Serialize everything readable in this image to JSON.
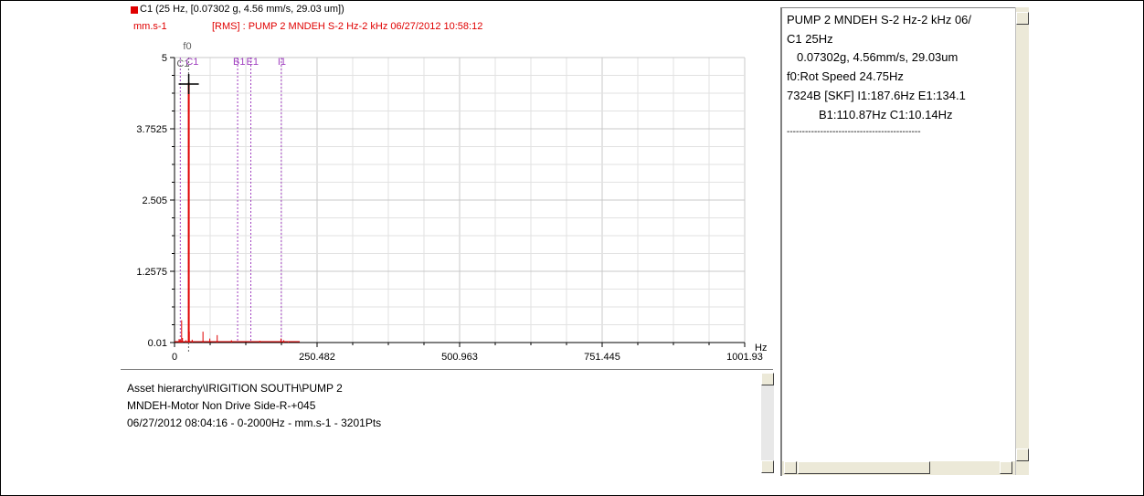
{
  "legend": {
    "series_label": "C1 (25 Hz, [0.07302 g, 4.56 mm/s, 29.03 um])",
    "unit": "mm.s-1",
    "rms_title": "[RMS] : PUMP 2 MNDEH S-2 Hz-2 kHz 06/27/2012 10:58:12",
    "series_color": "#e00000",
    "title_color": "#e00000"
  },
  "markers": {
    "f0": "f0",
    "c1": "C1",
    "b1": "B1",
    "e1": "E1",
    "i1": "I1",
    "color": "#a040c0"
  },
  "chart_data": {
    "type": "line",
    "xlabel": "Hz",
    "x_ticks": [
      "0",
      "250.482",
      "500.963",
      "751.445",
      "1001.93"
    ],
    "y_ticks": [
      "5",
      "3.7525",
      "2.505",
      "1.2575",
      "0.01"
    ],
    "xlim": [
      0,
      1001.93
    ],
    "ylim": [
      0.01,
      5
    ],
    "grid": true,
    "series": [
      {
        "color": "#e00000",
        "points": [
          {
            "x": 8,
            "y": 0.07
          },
          {
            "x": 10,
            "y": 0.06
          },
          {
            "x": 12.5,
            "y": 0.4
          },
          {
            "x": 14,
            "y": 0.09
          },
          {
            "x": 20,
            "y": 0.05
          },
          {
            "x": 25,
            "y": 4.56
          },
          {
            "x": 26,
            "y": 0.2
          },
          {
            "x": 31,
            "y": 0.06
          },
          {
            "x": 50,
            "y": 0.2
          },
          {
            "x": 62,
            "y": 0.08
          },
          {
            "x": 75,
            "y": 0.14
          },
          {
            "x": 100,
            "y": 0.05
          },
          {
            "x": 150,
            "y": 0.04
          },
          {
            "x": 187,
            "y": 0.08
          },
          {
            "x": 192,
            "y": 0.05
          },
          {
            "x": 200,
            "y": 0.03
          }
        ]
      }
    ],
    "marker_lines": [
      {
        "label": "C1",
        "x": 10.14
      },
      {
        "label": "f0",
        "x": 24.75
      },
      {
        "label": "B1",
        "x": 110.87
      },
      {
        "label": "E1",
        "x": 134.1
      },
      {
        "label": "I1",
        "x": 187.6
      }
    ],
    "cursor": {
      "x": 25,
      "y": 4.56
    }
  },
  "info": {
    "line1": "Asset hierarchy\\IRIGITION SOUTH\\PUMP 2",
    "line2": "MNDEH-Motor Non Drive Side-R-+045",
    "line3": "06/27/2012 08:04:16 - 0-2000Hz - mm.s-1 - 3201Pts"
  },
  "right_panel": {
    "line1": "PUMP 2 MNDEH S-2 Hz-2 kHz 06/",
    "line2": "C1   25Hz",
    "line3": "0.07302g, 4.56mm/s, 29.03um",
    "line4": "f0:Rot Speed 24.75Hz",
    "line5": "7324B [SKF] I1:187.6Hz E1:134.1",
    "line6": "B1:110.87Hz C1:10.14Hz",
    "separator": "--------------------------------------------"
  }
}
